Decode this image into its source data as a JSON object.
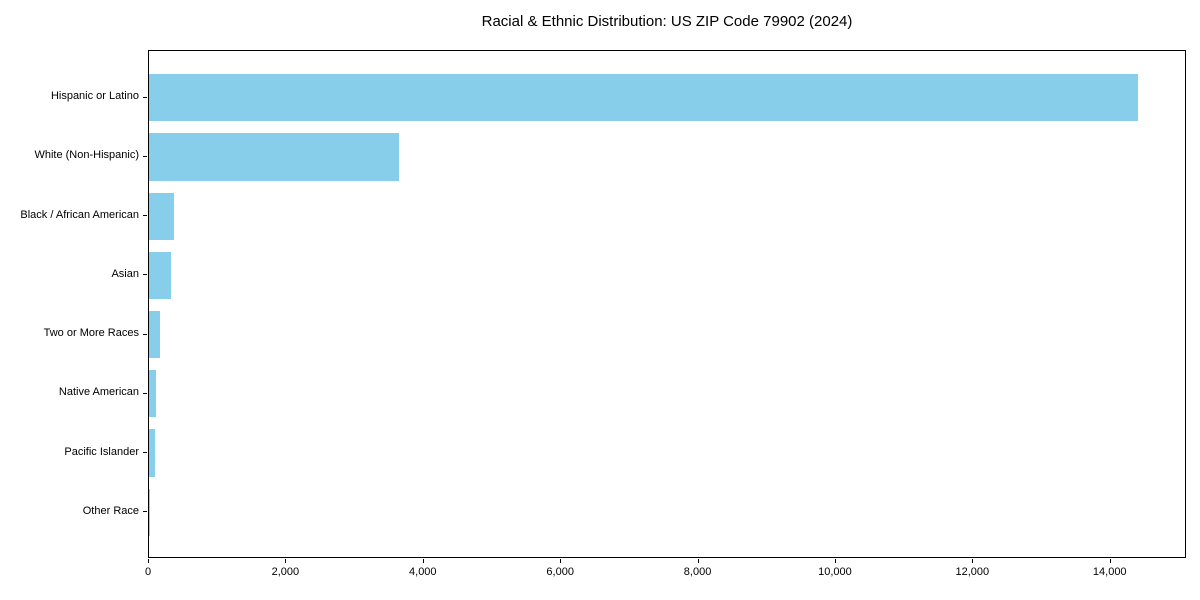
{
  "title": "Racial & Ethnic Distribution: US ZIP Code 79902 (2024)",
  "chart_data": {
    "type": "bar",
    "orientation": "horizontal",
    "title": "Racial & Ethnic Distribution: US ZIP Code 79902 (2024)",
    "xlabel": "",
    "ylabel": "",
    "categories": [
      "Hispanic or Latino",
      "White (Non-Hispanic)",
      "Black / African American",
      "Asian",
      "Two or More Races",
      "Native American",
      "Pacific Islander",
      "Other Race"
    ],
    "values": [
      14390,
      3640,
      360,
      320,
      165,
      95,
      90,
      15
    ],
    "xlim": [
      0,
      15110
    ],
    "x_ticks": [
      0,
      2000,
      4000,
      6000,
      8000,
      10000,
      12000,
      14000
    ],
    "x_tick_labels": [
      "0",
      "2,000",
      "4,000",
      "6,000",
      "8,000",
      "10,000",
      "12,000",
      "14,000"
    ],
    "grid": false,
    "legend": null,
    "bar_color": "#87ceeb"
  },
  "colors": {
    "bar": "#87ceeb",
    "axis": "#000000",
    "text": "#000000",
    "background": "#ffffff"
  }
}
